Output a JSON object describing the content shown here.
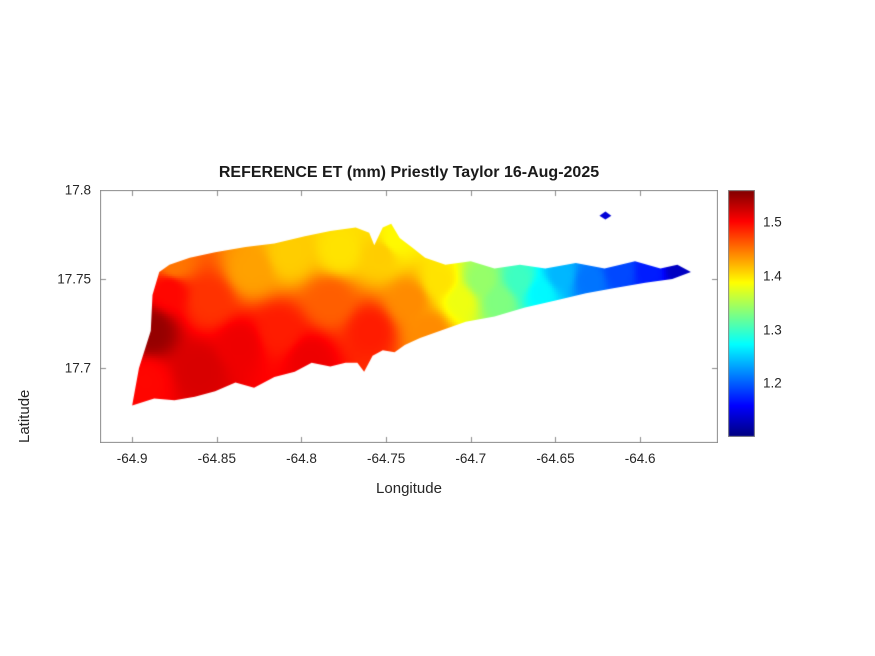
{
  "figure": {
    "background": "#ffffff",
    "text_color": "#262626",
    "axis_line_color": "#8c8c8c"
  },
  "chart_data": {
    "type": "heatmap",
    "title": "REFERENCE ET (mm) Priestly Taylor 16-Aug-2025",
    "xlabel": "Longitude",
    "ylabel": "Latitude",
    "xlim": [
      -64.919,
      -64.554
    ],
    "ylim": [
      17.658,
      17.8
    ],
    "xticks": [
      -64.9,
      -64.85,
      -64.8,
      -64.75,
      -64.7,
      -64.65,
      -64.6
    ],
    "xtick_labels": [
      "-64.9",
      "-64.85",
      "-64.8",
      "-64.75",
      "-64.7",
      "-64.65",
      "-64.6"
    ],
    "yticks": [
      17.8,
      17.75,
      17.7
    ],
    "ytick_labels": [
      "17.8",
      "17.75",
      "17.7"
    ],
    "grid": false,
    "legend": "none",
    "colormap": "jet",
    "color_limits": [
      1.1,
      1.56
    ],
    "colorbar_position": "right",
    "colorbar_ticks": [
      1.5,
      1.4,
      1.3,
      1.2
    ],
    "colorbar_tick_labels": [
      "1.5",
      "1.4",
      "1.3",
      "1.2"
    ],
    "island_outline": [
      [
        -64.9,
        17.679
      ],
      [
        -64.896,
        17.7
      ],
      [
        -64.889,
        17.721
      ],
      [
        -64.888,
        17.741
      ],
      [
        -64.884,
        17.754
      ],
      [
        -64.878,
        17.758
      ],
      [
        -64.866,
        17.762
      ],
      [
        -64.851,
        17.765
      ],
      [
        -64.833,
        17.768
      ],
      [
        -64.816,
        17.77
      ],
      [
        -64.798,
        17.774
      ],
      [
        -64.783,
        17.777
      ],
      [
        -64.768,
        17.779
      ],
      [
        -64.76,
        17.776
      ],
      [
        -64.757,
        17.769
      ],
      [
        -64.752,
        17.779
      ],
      [
        -64.747,
        17.781
      ],
      [
        -64.742,
        17.773
      ],
      [
        -64.735,
        17.768
      ],
      [
        -64.727,
        17.762
      ],
      [
        -64.715,
        17.758
      ],
      [
        -64.7,
        17.76
      ],
      [
        -64.686,
        17.756
      ],
      [
        -64.671,
        17.758
      ],
      [
        -64.656,
        17.756
      ],
      [
        -64.638,
        17.759
      ],
      [
        -64.621,
        17.756
      ],
      [
        -64.603,
        17.76
      ],
      [
        -64.588,
        17.756
      ],
      [
        -64.578,
        17.758
      ],
      [
        -64.57,
        17.754
      ],
      [
        -64.581,
        17.75
      ],
      [
        -64.597,
        17.748
      ],
      [
        -64.615,
        17.745
      ],
      [
        -64.632,
        17.742
      ],
      [
        -64.65,
        17.738
      ],
      [
        -64.668,
        17.734
      ],
      [
        -64.686,
        17.729
      ],
      [
        -64.703,
        17.726
      ],
      [
        -64.718,
        17.721
      ],
      [
        -64.73,
        17.717
      ],
      [
        -64.739,
        17.713
      ],
      [
        -64.745,
        17.709
      ],
      [
        -64.752,
        17.71
      ],
      [
        -64.758,
        17.707
      ],
      [
        -64.763,
        17.698
      ],
      [
        -64.767,
        17.703
      ],
      [
        -64.774,
        17.703
      ],
      [
        -64.783,
        17.701
      ],
      [
        -64.794,
        17.703
      ],
      [
        -64.804,
        17.698
      ],
      [
        -64.816,
        17.695
      ],
      [
        -64.828,
        17.689
      ],
      [
        -64.839,
        17.692
      ],
      [
        -64.851,
        17.687
      ],
      [
        -64.863,
        17.684
      ],
      [
        -64.875,
        17.682
      ],
      [
        -64.887,
        17.683
      ]
    ],
    "islet_outline": [
      [
        -64.624,
        17.7855
      ],
      [
        -64.6205,
        17.788
      ],
      [
        -64.617,
        17.7855
      ],
      [
        -64.6205,
        17.7835
      ]
    ],
    "et_control_points": [
      [
        -64.889,
        17.721,
        1.55
      ],
      [
        -64.892,
        17.693,
        1.5
      ],
      [
        -64.878,
        17.744,
        1.5
      ],
      [
        -64.875,
        17.758,
        1.45
      ],
      [
        -64.854,
        17.738,
        1.48
      ],
      [
        -64.86,
        17.699,
        1.52
      ],
      [
        -64.836,
        17.713,
        1.51
      ],
      [
        -64.83,
        17.755,
        1.43
      ],
      [
        -64.807,
        17.764,
        1.41
      ],
      [
        -64.813,
        17.721,
        1.49
      ],
      [
        -64.795,
        17.705,
        1.51
      ],
      [
        -64.783,
        17.738,
        1.46
      ],
      [
        -64.777,
        17.766,
        1.4
      ],
      [
        -64.759,
        17.721,
        1.49
      ],
      [
        -64.753,
        17.764,
        1.41
      ],
      [
        -64.745,
        17.772,
        1.39
      ],
      [
        -64.736,
        17.738,
        1.44
      ],
      [
        -64.724,
        17.721,
        1.44
      ],
      [
        -64.718,
        17.749,
        1.4
      ],
      [
        -64.706,
        17.738,
        1.38
      ],
      [
        -64.694,
        17.749,
        1.34
      ],
      [
        -64.683,
        17.738,
        1.33
      ],
      [
        -64.671,
        17.749,
        1.3
      ],
      [
        -64.659,
        17.743,
        1.27
      ],
      [
        -64.647,
        17.752,
        1.24
      ],
      [
        -64.63,
        17.749,
        1.21
      ],
      [
        -64.612,
        17.754,
        1.19
      ],
      [
        -64.594,
        17.754,
        1.17
      ],
      [
        -64.577,
        17.756,
        1.13
      ],
      [
        -64.6205,
        17.787,
        1.14
      ]
    ]
  }
}
